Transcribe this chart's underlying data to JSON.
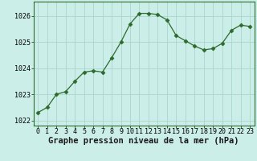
{
  "x": [
    0,
    1,
    2,
    3,
    4,
    5,
    6,
    7,
    8,
    9,
    10,
    11,
    12,
    13,
    14,
    15,
    16,
    17,
    18,
    19,
    20,
    21,
    22,
    23
  ],
  "y": [
    1022.3,
    1022.5,
    1023.0,
    1023.1,
    1023.5,
    1023.85,
    1023.9,
    1023.85,
    1024.4,
    1025.0,
    1025.7,
    1026.1,
    1026.1,
    1026.05,
    1025.85,
    1025.25,
    1025.05,
    1024.85,
    1024.7,
    1024.75,
    1024.95,
    1025.45,
    1025.65,
    1025.6
  ],
  "line_color": "#2d6a2d",
  "marker": "D",
  "marker_size": 2.5,
  "bg_color": "#cceee8",
  "grid_color": "#aad4ce",
  "title": "Graphe pression niveau de la mer (hPa)",
  "ylim_min": 1021.8,
  "ylim_max": 1026.55,
  "yticks": [
    1022,
    1023,
    1024,
    1025,
    1026
  ],
  "xticks": [
    0,
    1,
    2,
    3,
    4,
    5,
    6,
    7,
    8,
    9,
    10,
    11,
    12,
    13,
    14,
    15,
    16,
    17,
    18,
    19,
    20,
    21,
    22,
    23
  ],
  "title_fontsize": 7.5,
  "tick_label_fontsize": 6.0
}
